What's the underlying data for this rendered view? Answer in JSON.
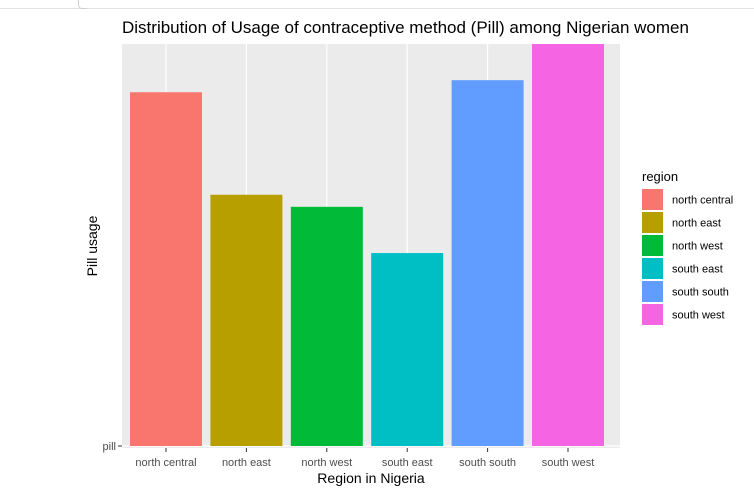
{
  "chart_data": {
    "type": "bar",
    "title": "Distribution of Usage of contraceptive method (Pill) among Nigerian women",
    "xlabel": "Region in Nigeria",
    "ylabel": "Pill usage",
    "y_tick_labels": [
      "pill"
    ],
    "categories": [
      "north central",
      "north east",
      "north west",
      "south east",
      "south south",
      "south west"
    ],
    "values": [
      0.88,
      0.625,
      0.595,
      0.48,
      0.91,
      1.0
    ],
    "ylim": [
      0,
      1.0
    ],
    "grid": true,
    "legend": {
      "title": "region",
      "placement": "right",
      "entries": [
        "north central",
        "north east",
        "north west",
        "south east",
        "south south",
        "south west"
      ]
    },
    "colors": [
      "#F8766D",
      "#B79F00",
      "#00BA38",
      "#00BFC4",
      "#619CFF",
      "#F564E3"
    ],
    "panel_background": "#EBEBEB",
    "grid_color": "#FFFFFF"
  }
}
